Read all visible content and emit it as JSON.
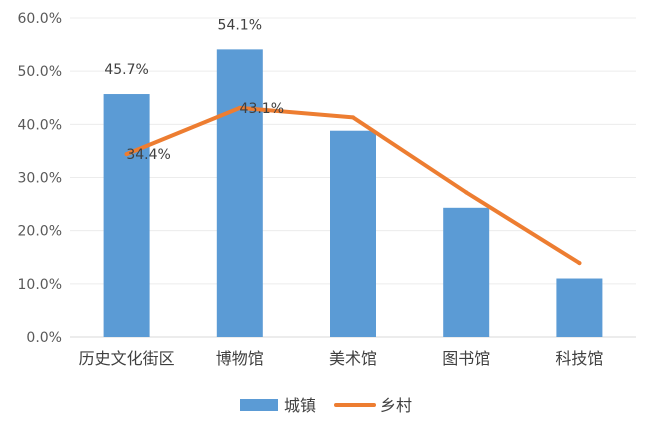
{
  "chart_data": {
    "type": "bar",
    "categories": [
      "历史文化街区",
      "博物馆",
      "美术馆",
      "图书馆",
      "科技馆"
    ],
    "series": [
      {
        "name": "城镇",
        "type": "bar",
        "color": "#5b9bd5",
        "values": [
          45.7,
          54.1,
          38.8,
          24.3,
          11.0
        ],
        "data_labels": [
          "45.7%",
          "54.1%",
          "",
          "",
          ""
        ]
      },
      {
        "name": "乡村",
        "type": "line",
        "color": "#ed7d31",
        "values": [
          34.4,
          43.1,
          41.3,
          27.2,
          13.9
        ],
        "data_labels": [
          "34.4%",
          "43.1%",
          "",
          "",
          ""
        ]
      }
    ],
    "ylim": [
      0,
      60
    ],
    "yticks": [
      0,
      10,
      20,
      30,
      40,
      50,
      60
    ],
    "ytick_labels": [
      "0.0%",
      "10.0%",
      "20.0%",
      "30.0%",
      "40.0%",
      "50.0%",
      "60.0%"
    ],
    "grid": true,
    "legend_position": "bottom"
  }
}
